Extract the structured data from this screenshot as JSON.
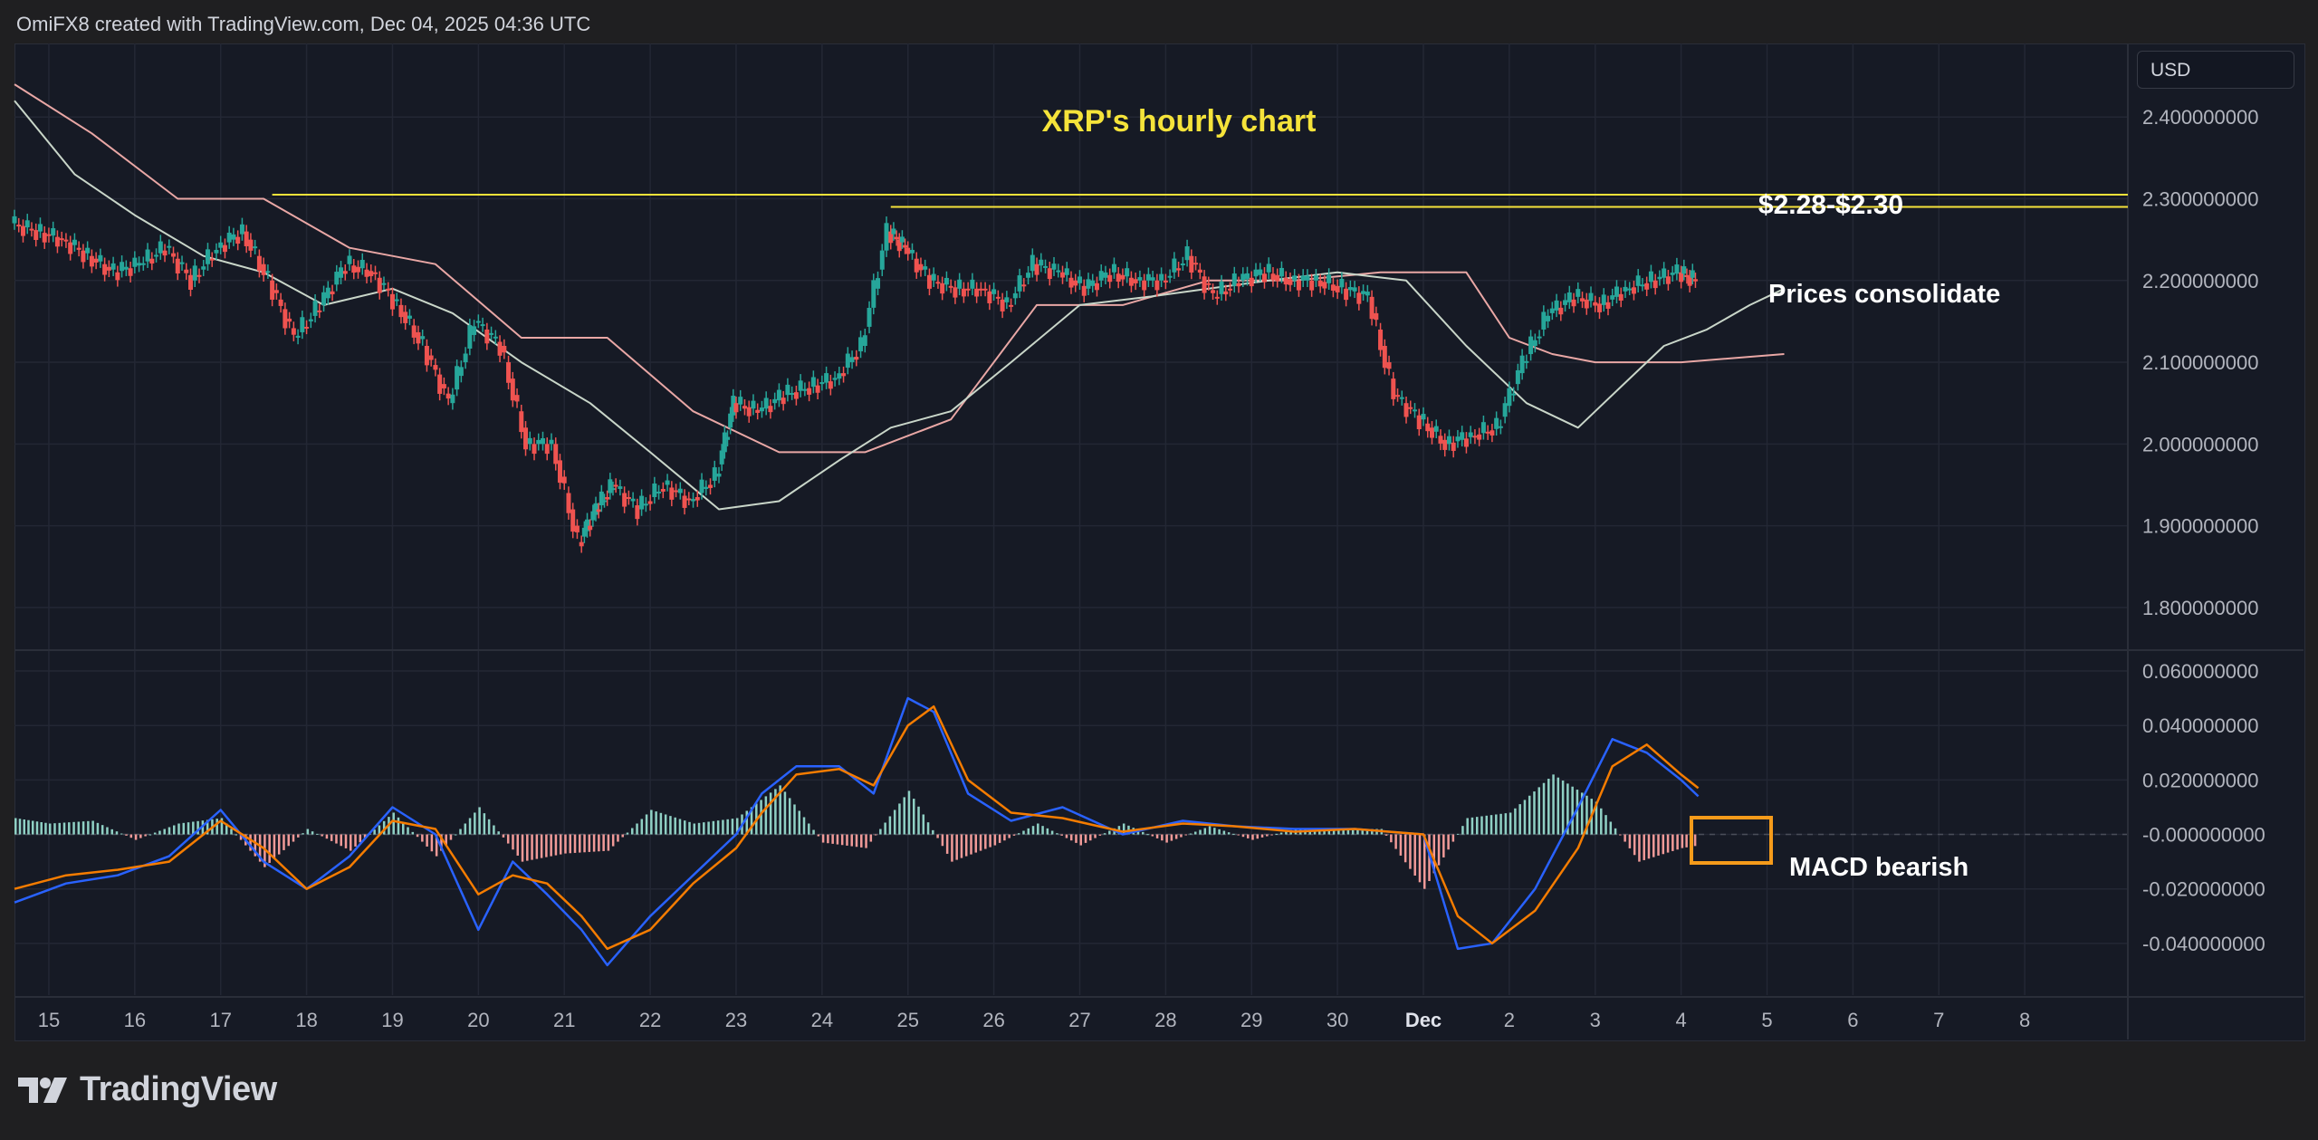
{
  "header": {
    "attribution": "OmiFX8 created with TradingView.com, Dec 04, 2025 04:36 UTC"
  },
  "currency_button": "USD",
  "brand": {
    "name": "TradingView"
  },
  "annotations": {
    "title": "XRP's hourly chart",
    "resistance": "$2.28-$2.30",
    "consolidate": "Prices consolidate",
    "macd": "MACD bearish"
  },
  "colors": {
    "up": "#26a69a",
    "down": "#ef5350",
    "title": "#f5e33a",
    "macd_line": "#2962ff",
    "signal_line": "#f57c00",
    "box": "#f59b1a",
    "level_line": "#f5e33a"
  },
  "chart_data": [
    {
      "type": "line",
      "title": "XRP's hourly chart",
      "ylim": [
        1.75,
        2.49
      ],
      "y_ticks": [
        "2.400000000",
        "2.300000000",
        "2.200000000",
        "2.100000000",
        "2.000000000",
        "1.900000000",
        "1.800000000"
      ],
      "y_tick_values": [
        2.4,
        2.3,
        2.2,
        2.1,
        2.0,
        1.9,
        1.8
      ],
      "x_ticks": [
        "15",
        "16",
        "17",
        "18",
        "19",
        "20",
        "21",
        "22",
        "23",
        "24",
        "25",
        "26",
        "27",
        "28",
        "29",
        "30",
        "Dec",
        "2",
        "3",
        "4",
        "5",
        "6",
        "7",
        "8"
      ],
      "x_range": [
        14.6,
        39.2
      ],
      "levels": [
        {
          "from": 17.6,
          "value": 2.305
        },
        {
          "from": 24.8,
          "value": 2.29
        }
      ],
      "series": [
        {
          "role": "price",
          "x": [
            14.6,
            14.9,
            15.2,
            15.5,
            15.8,
            16.1,
            16.4,
            16.7,
            17.0,
            17.3,
            17.6,
            17.9,
            18.2,
            18.5,
            18.8,
            19.1,
            19.4,
            19.7,
            20.0,
            20.3,
            20.6,
            20.9,
            21.2,
            21.4,
            21.6,
            21.9,
            22.2,
            22.5,
            22.8,
            23.0,
            23.3,
            23.6,
            23.9,
            24.2,
            24.5,
            24.8,
            25.0,
            25.3,
            25.6,
            25.9,
            26.2,
            26.5,
            26.8,
            27.1,
            27.4,
            27.7,
            28.0,
            28.3,
            28.6,
            28.9,
            29.2,
            29.5,
            29.8,
            30.1,
            30.4,
            30.7,
            31.0,
            31.3,
            31.6,
            31.9,
            32.2,
            32.5,
            32.8,
            33.1,
            33.4,
            33.7,
            34.0,
            34.2
          ],
          "y": [
            2.27,
            2.26,
            2.25,
            2.23,
            2.21,
            2.22,
            2.24,
            2.2,
            2.24,
            2.26,
            2.2,
            2.13,
            2.17,
            2.22,
            2.21,
            2.17,
            2.12,
            2.05,
            2.15,
            2.12,
            2.0,
            2.0,
            1.88,
            1.92,
            1.95,
            1.92,
            1.95,
            1.93,
            1.96,
            2.05,
            2.04,
            2.06,
            2.07,
            2.08,
            2.12,
            2.26,
            2.24,
            2.2,
            2.19,
            2.19,
            2.17,
            2.22,
            2.21,
            2.19,
            2.21,
            2.2,
            2.2,
            2.23,
            2.18,
            2.2,
            2.21,
            2.2,
            2.2,
            2.19,
            2.18,
            2.06,
            2.03,
            2.0,
            2.01,
            2.02,
            2.1,
            2.16,
            2.18,
            2.17,
            2.19,
            2.2,
            2.21,
            2.2
          ]
        },
        {
          "role": "baseline",
          "x": [
            14.6,
            15.5,
            16.5,
            17.5,
            18.5,
            19.5,
            20.5,
            21.5,
            22.5,
            23.5,
            24.5,
            25.5,
            26.5,
            27.5,
            28.5,
            29.5,
            30.5,
            31.5,
            32.0,
            32.5,
            33.0,
            33.5,
            34.0,
            35.2
          ],
          "y": [
            2.44,
            2.38,
            2.3,
            2.3,
            2.24,
            2.22,
            2.13,
            2.13,
            2.04,
            1.99,
            1.99,
            2.03,
            2.17,
            2.17,
            2.2,
            2.2,
            2.21,
            2.21,
            2.13,
            2.11,
            2.1,
            2.1,
            2.1,
            2.11
          ]
        },
        {
          "role": "conversion",
          "x": [
            14.6,
            15.3,
            16.0,
            16.8,
            17.5,
            18.2,
            19.0,
            19.7,
            20.5,
            21.3,
            22.0,
            22.8,
            23.5,
            24.2,
            24.8,
            25.5,
            26.2,
            27.0,
            27.8,
            28.5,
            29.2,
            30.0,
            30.8,
            31.5,
            32.2,
            32.8,
            33.3,
            33.8,
            34.3,
            34.8,
            35.2
          ],
          "y": [
            2.42,
            2.33,
            2.28,
            2.23,
            2.21,
            2.17,
            2.19,
            2.16,
            2.1,
            2.05,
            1.99,
            1.92,
            1.93,
            1.98,
            2.02,
            2.04,
            2.1,
            2.17,
            2.18,
            2.19,
            2.2,
            2.21,
            2.2,
            2.12,
            2.05,
            2.02,
            2.07,
            2.12,
            2.14,
            2.17,
            2.19
          ]
        }
      ]
    },
    {
      "type": "bar",
      "title": "",
      "indicator": "MACD",
      "ylim": [
        -0.059,
        0.067
      ],
      "y_ticks": [
        "0.060000000",
        "0.040000000",
        "0.020000000",
        "-0.000000000",
        "-0.020000000",
        "-0.040000000"
      ],
      "y_tick_values": [
        0.06,
        0.04,
        0.02,
        0.0,
        -0.02,
        -0.04
      ],
      "series": [
        {
          "name": "MACD",
          "role": "macd",
          "x": [
            14.6,
            15.2,
            15.8,
            16.4,
            17.0,
            17.5,
            18.0,
            18.5,
            19.0,
            19.5,
            20.0,
            20.4,
            20.8,
            21.2,
            21.5,
            22.0,
            22.5,
            23.0,
            23.3,
            23.7,
            24.2,
            24.6,
            25.0,
            25.3,
            25.7,
            26.2,
            26.8,
            27.5,
            28.2,
            28.8,
            29.5,
            30.2,
            31.0,
            31.4,
            31.8,
            32.3,
            32.8,
            33.2,
            33.6,
            34.0,
            34.2
          ],
          "y": [
            -0.025,
            -0.018,
            -0.015,
            -0.008,
            0.009,
            -0.01,
            -0.02,
            -0.008,
            0.01,
            0.0,
            -0.035,
            -0.01,
            -0.022,
            -0.035,
            -0.048,
            -0.03,
            -0.015,
            0.0,
            0.015,
            0.025,
            0.025,
            0.015,
            0.05,
            0.045,
            0.015,
            0.005,
            0.01,
            0.0,
            0.005,
            0.003,
            0.002,
            0.002,
            0.0,
            -0.042,
            -0.04,
            -0.02,
            0.01,
            0.035,
            0.03,
            0.02,
            0.014
          ]
        },
        {
          "name": "Signal",
          "role": "signal",
          "x": [
            14.6,
            15.2,
            15.8,
            16.4,
            17.0,
            17.5,
            18.0,
            18.5,
            19.0,
            19.5,
            20.0,
            20.4,
            20.8,
            21.2,
            21.5,
            22.0,
            22.5,
            23.0,
            23.3,
            23.7,
            24.2,
            24.6,
            25.0,
            25.3,
            25.7,
            26.2,
            26.8,
            27.5,
            28.2,
            28.8,
            29.5,
            30.2,
            31.0,
            31.4,
            31.8,
            32.3,
            32.8,
            33.2,
            33.6,
            34.0,
            34.2
          ],
          "y": [
            -0.02,
            -0.015,
            -0.013,
            -0.01,
            0.005,
            -0.005,
            -0.02,
            -0.012,
            0.005,
            0.002,
            -0.022,
            -0.015,
            -0.018,
            -0.03,
            -0.042,
            -0.035,
            -0.018,
            -0.005,
            0.008,
            0.022,
            0.024,
            0.018,
            0.04,
            0.047,
            0.02,
            0.008,
            0.006,
            0.001,
            0.004,
            0.003,
            0.001,
            0.002,
            0.0,
            -0.03,
            -0.04,
            -0.028,
            -0.005,
            0.025,
            0.033,
            0.022,
            0.017
          ]
        },
        {
          "name": "Histogram",
          "role": "histogram",
          "x": [
            14.6,
            15.0,
            15.5,
            16.0,
            16.5,
            17.0,
            17.5,
            18.0,
            18.5,
            19.0,
            19.5,
            20.0,
            20.5,
            21.0,
            21.5,
            22.0,
            22.5,
            23.0,
            23.5,
            24.0,
            24.5,
            25.0,
            25.5,
            26.0,
            26.5,
            27.0,
            27.5,
            28.0,
            28.5,
            29.0,
            29.5,
            30.0,
            30.5,
            31.0,
            31.5,
            32.0,
            32.5,
            33.0,
            33.5,
            34.0,
            34.2
          ],
          "y": [
            0.006,
            0.004,
            0.005,
            -0.002,
            0.004,
            0.006,
            -0.012,
            0.002,
            -0.006,
            0.008,
            -0.008,
            0.01,
            -0.01,
            -0.007,
            -0.006,
            0.009,
            0.004,
            0.006,
            0.018,
            -0.003,
            -0.005,
            0.016,
            -0.01,
            -0.004,
            0.004,
            -0.004,
            0.004,
            -0.003,
            0.003,
            -0.002,
            0.002,
            0.002,
            0.002,
            -0.02,
            0.006,
            0.008,
            0.022,
            0.012,
            -0.01,
            -0.005,
            -0.004
          ]
        }
      ]
    }
  ]
}
